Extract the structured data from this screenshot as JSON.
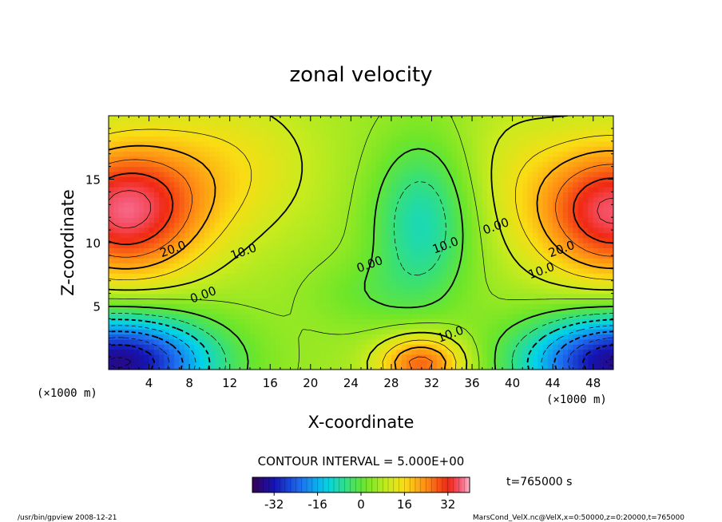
{
  "chart_data": {
    "type": "heatmap",
    "title": "zonal velocity",
    "xlabel": "X-coordinate",
    "ylabel": "Z-coordinate",
    "x_unit": "(×1000 m)",
    "z_unit": "(×1000 m)",
    "xlim": [
      0,
      50
    ],
    "ylim": [
      0,
      20
    ],
    "x_ticks": [
      "4",
      "8",
      "12",
      "16",
      "20",
      "24",
      "28",
      "32",
      "36",
      "40",
      "44",
      "48"
    ],
    "x_tick_values": [
      4,
      8,
      12,
      16,
      20,
      24,
      28,
      32,
      36,
      40,
      44,
      48
    ],
    "y_ticks": [
      "5",
      "10",
      "15"
    ],
    "y_tick_values": [
      5,
      10,
      15
    ],
    "contour_interval": "CONTOUR INTERVAL = 5.000E+00",
    "time_label": "t=765000 s",
    "colorbar": {
      "range": [
        -40,
        40
      ],
      "ticks": [
        "-32",
        "-16",
        "0",
        "16",
        "32"
      ],
      "tick_values": [
        -32,
        -16,
        0,
        16,
        32
      ]
    },
    "contour_labels": [
      {
        "text": "20.0",
        "x": 6.5,
        "z": 9.2
      },
      {
        "text": "10.0",
        "x": 13.5,
        "z": 9.0
      },
      {
        "text": "0.00",
        "x": 9.5,
        "z": 5.6
      },
      {
        "text": "0.00",
        "x": 26.0,
        "z": 8.0
      },
      {
        "text": "10.0",
        "x": 33.5,
        "z": 9.5
      },
      {
        "text": "0.00",
        "x": 38.5,
        "z": 11.0
      },
      {
        "text": "10.0",
        "x": 34.0,
        "z": 2.5
      },
      {
        "text": "20.0",
        "x": 45.0,
        "z": 9.2
      },
      {
        "text": "10.0",
        "x": 43.0,
        "z": 7.5
      }
    ],
    "field_features": [
      {
        "kind": "max",
        "x": 2.0,
        "z": 12.5,
        "value": 34
      },
      {
        "kind": "max",
        "x": 49.5,
        "z": 12.5,
        "value": 34
      },
      {
        "kind": "min",
        "x": 2.0,
        "z": 1.0,
        "value": -34
      },
      {
        "kind": "min",
        "x": 49.5,
        "z": 1.0,
        "value": -34
      },
      {
        "kind": "min",
        "x": 32.0,
        "z": 11.5,
        "value": -9
      },
      {
        "kind": "max",
        "x": 31.0,
        "z": 0.8,
        "value": 26
      }
    ]
  },
  "footer": {
    "left": "/usr/bin/gpview  2008-12-21",
    "right": "MarsCond_VelX.nc@VelX,x=0:50000,z=0:20000,t=765000"
  }
}
